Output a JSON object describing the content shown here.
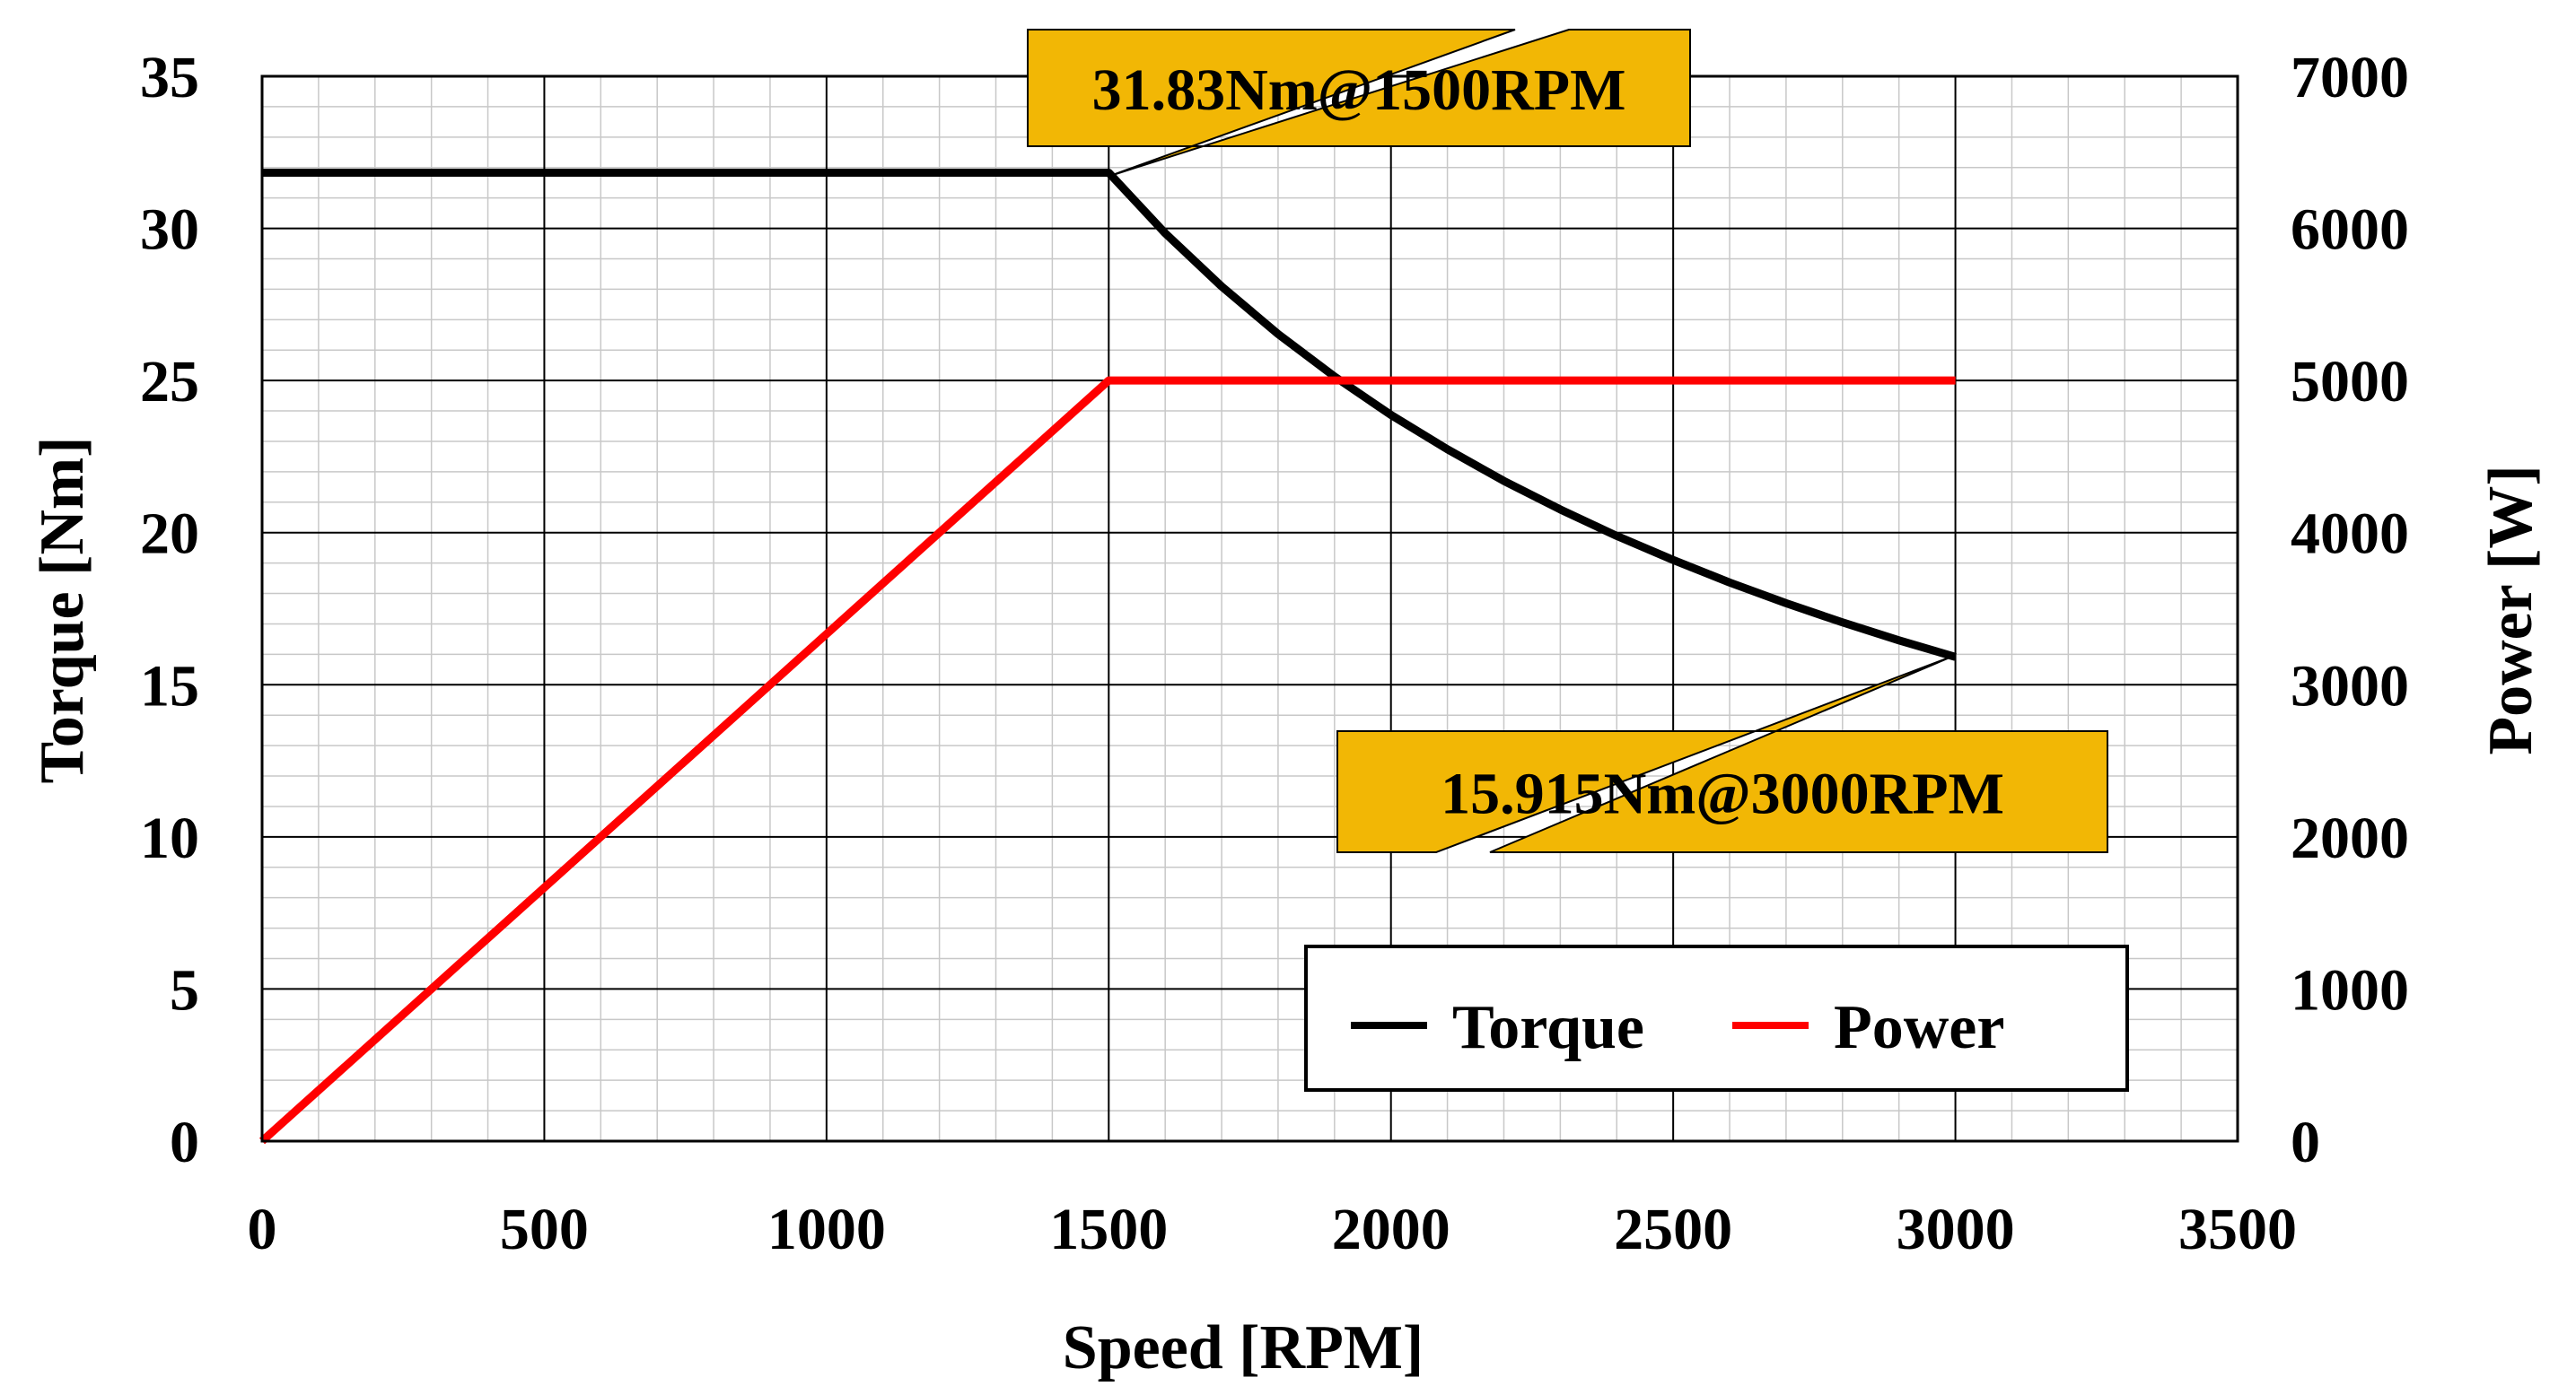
{
  "chart_data": {
    "type": "line",
    "xlabel": "Speed [RPM]",
    "ylabel_left": "Torque [Nm]",
    "ylabel_right": "Power [W]",
    "xlim": [
      0,
      3500
    ],
    "ylim_left": [
      0,
      35
    ],
    "ylim_right": [
      0,
      7000
    ],
    "x_ticks": [
      "0",
      "500",
      "1000",
      "1500",
      "2000",
      "2500",
      "3000",
      "3500"
    ],
    "y_left_ticks": [
      "0",
      "5",
      "10",
      "15",
      "20",
      "25",
      "30",
      "35"
    ],
    "y_right_ticks": [
      "0",
      "1000",
      "2000",
      "3000",
      "4000",
      "5000",
      "6000",
      "7000"
    ],
    "grid": true,
    "legend_position": "lower-right",
    "series": [
      {
        "name": "Torque",
        "axis": "left",
        "color": "#000000",
        "x": [
          0,
          1500,
          1600,
          1700,
          1800,
          1900,
          2000,
          2100,
          2200,
          2300,
          2400,
          2500,
          2600,
          2700,
          2800,
          2900,
          3000
        ],
        "values": [
          31.83,
          31.83,
          29.84,
          28.09,
          26.53,
          25.13,
          23.87,
          22.74,
          21.7,
          20.76,
          19.89,
          19.1,
          18.36,
          17.68,
          17.05,
          16.46,
          15.915
        ]
      },
      {
        "name": "Power",
        "axis": "right",
        "color": "#ff0000",
        "x": [
          0,
          1500,
          3000
        ],
        "values": [
          0,
          5000,
          5000
        ]
      }
    ],
    "annotations": [
      {
        "text": "31.83Nm@1500RPM",
        "x": 1500,
        "y": 31.83
      },
      {
        "text": "15.915Nm@3000RPM",
        "x": 3000,
        "y": 15.915
      }
    ]
  }
}
